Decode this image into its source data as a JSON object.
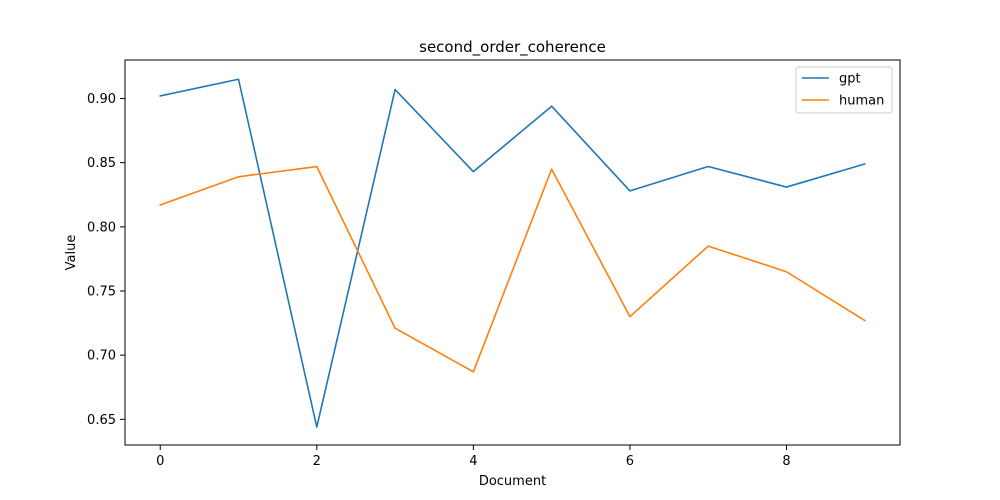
{
  "chart_data": {
    "type": "line",
    "title": "second_order_coherence",
    "xlabel": "Document",
    "ylabel": "Value",
    "x": [
      0,
      1,
      2,
      3,
      4,
      5,
      6,
      7,
      8,
      9
    ],
    "xlim": [
      -0.45,
      9.45
    ],
    "ylim": [
      0.63,
      0.93
    ],
    "xticks": [
      0,
      2,
      4,
      6,
      8
    ],
    "yticks": [
      0.65,
      0.7,
      0.75,
      0.8,
      0.85,
      0.9
    ],
    "ytick_labels": [
      "0.65",
      "0.70",
      "0.75",
      "0.80",
      "0.85",
      "0.90"
    ],
    "grid": false,
    "legend_position": "top-right",
    "series": [
      {
        "name": "gpt",
        "color": "#1f77b4",
        "values": [
          0.902,
          0.915,
          0.644,
          0.907,
          0.843,
          0.894,
          0.828,
          0.847,
          0.831,
          0.849
        ]
      },
      {
        "name": "human",
        "color": "#ff7f0e",
        "values": [
          0.817,
          0.839,
          0.847,
          0.721,
          0.687,
          0.845,
          0.73,
          0.785,
          0.765,
          0.727
        ]
      }
    ]
  }
}
